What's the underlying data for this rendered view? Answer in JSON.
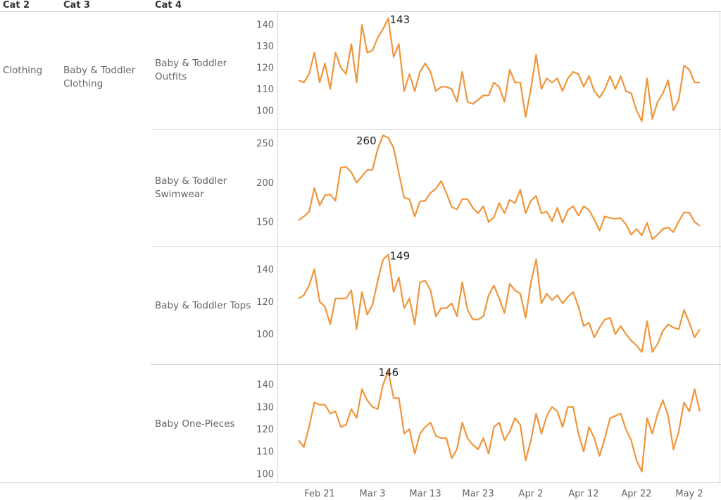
{
  "headers": {
    "cat2": "Cat 2",
    "cat3": "Cat 3",
    "cat4": "Cat 4"
  },
  "cat2": "Clothing",
  "cat3": "Baby & Toddler\nClothing",
  "colors": {
    "line": "#f0953a",
    "grid": "#d4d4d4",
    "tick": "#666666"
  },
  "chart_data": {
    "type": "line",
    "x_tick_labels": [
      "Feb 21",
      "Mar 3",
      "Mar 13",
      "Mar 23",
      "Apr 2",
      "Apr 12",
      "Apr 22",
      "May 2"
    ],
    "panels": [
      {
        "name": "Baby & Toddler\nOutfits",
        "ylim": [
          94,
          144
        ],
        "yticks": [
          100,
          110,
          120,
          130,
          140
        ],
        "peak_label": "143",
        "values": [
          114,
          113,
          117,
          127,
          113,
          122,
          110,
          127,
          120,
          117,
          131,
          113,
          140,
          127,
          128,
          134,
          138,
          143,
          125,
          131,
          109,
          117,
          109,
          118,
          122,
          118,
          109,
          111,
          111,
          110,
          104,
          118,
          104,
          103,
          105,
          107,
          107,
          113,
          111,
          104,
          119,
          113,
          113,
          97,
          110,
          126,
          110,
          115,
          113,
          115,
          109,
          115,
          118,
          117,
          111,
          116,
          109,
          106,
          110,
          116,
          110,
          116,
          109,
          108,
          100,
          95,
          115,
          96,
          104,
          108,
          114,
          100,
          105,
          121,
          119,
          113,
          113
        ]
      },
      {
        "name": "Baby & Toddler\nSwimwear",
        "ylim": [
          126,
          262
        ],
        "yticks": [
          150,
          200,
          250
        ],
        "peak_label": "260",
        "values": [
          152,
          157,
          163,
          193,
          171,
          184,
          185,
          177,
          219,
          220,
          213,
          200,
          208,
          216,
          216,
          243,
          260,
          257,
          244,
          212,
          181,
          179,
          157,
          176,
          177,
          187,
          192,
          202,
          187,
          169,
          166,
          179,
          179,
          168,
          161,
          170,
          150,
          156,
          174,
          161,
          178,
          174,
          191,
          161,
          177,
          183,
          161,
          163,
          151,
          168,
          149,
          165,
          170,
          158,
          170,
          165,
          153,
          139,
          157,
          155,
          154,
          155,
          147,
          134,
          141,
          133,
          149,
          128,
          134,
          141,
          143,
          137,
          151,
          162,
          162,
          150,
          145
        ]
      },
      {
        "name": "Baby & Toddler Tops",
        "ylim": [
          85,
          151
        ],
        "yticks": [
          100,
          120,
          140
        ],
        "peak_label": "149",
        "values": [
          122,
          124,
          130,
          140,
          120,
          117,
          106,
          122,
          122,
          122,
          127,
          103,
          126,
          112,
          118,
          133,
          146,
          149,
          126,
          135,
          116,
          122,
          106,
          132,
          133,
          127,
          111,
          116,
          116,
          119,
          111,
          132,
          115,
          109,
          109,
          111,
          124,
          130,
          122,
          113,
          131,
          127,
          125,
          110,
          132,
          146,
          119,
          125,
          121,
          124,
          119,
          123,
          126,
          117,
          105,
          107,
          98,
          104,
          109,
          110,
          100,
          105,
          100,
          96,
          93,
          89,
          108,
          89,
          94,
          102,
          106,
          104,
          103,
          115,
          107,
          98,
          103
        ]
      },
      {
        "name": "Baby One-Pieces",
        "ylim": [
          99,
          147
        ],
        "yticks": [
          100,
          110,
          120,
          130,
          140
        ],
        "peak_label": "146",
        "values": [
          115,
          112,
          121,
          132,
          131,
          131,
          127,
          128,
          121,
          122,
          129,
          125,
          138,
          133,
          130,
          129,
          140,
          146,
          134,
          134,
          118,
          120,
          109,
          118,
          121,
          123,
          117,
          116,
          116,
          107,
          111,
          123,
          116,
          113,
          111,
          116,
          109,
          121,
          123,
          115,
          119,
          125,
          122,
          106,
          115,
          127,
          118,
          126,
          130,
          128,
          121,
          130,
          130,
          118,
          110,
          121,
          116,
          108,
          116,
          125,
          126,
          127,
          120,
          115,
          106,
          101,
          125,
          118,
          127,
          133,
          126,
          111,
          119,
          132,
          128,
          138,
          128
        ]
      }
    ]
  }
}
